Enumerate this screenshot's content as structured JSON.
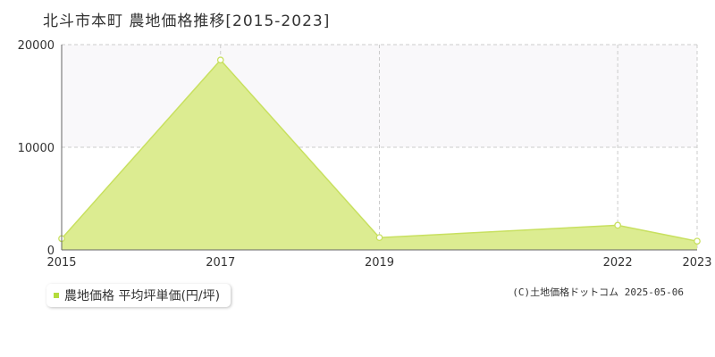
{
  "page": {
    "title": "北斗市本町 農地価格推移[2015-2023]",
    "credit": "(C)土地価格ドットコム 2025-05-06"
  },
  "legend": {
    "label": "農地価格 平均坪単価(円/坪)"
  },
  "colors": {
    "fill": "#dcec91",
    "line": "#c8e060",
    "swatch": "#b4dc3c",
    "grid": "#cccccc",
    "band": "#f9f8fa",
    "axis": "#666666"
  },
  "chart_data": {
    "type": "area",
    "x": [
      2015,
      2017,
      2019,
      2022,
      2023
    ],
    "series": [
      {
        "name": "農地価格 平均坪単価(円/坪)",
        "values": [
          1100,
          18500,
          1200,
          2400,
          850
        ]
      }
    ],
    "x_tick_labels": [
      "2015",
      "2017",
      "2019",
      "2022",
      "2023"
    ],
    "y_ticks": [
      0,
      10000,
      20000
    ],
    "y_tick_labels": [
      "0",
      "10000",
      "20000"
    ],
    "xlim": [
      2015,
      2023
    ],
    "ylim": [
      0,
      20000
    ],
    "grid": true
  }
}
